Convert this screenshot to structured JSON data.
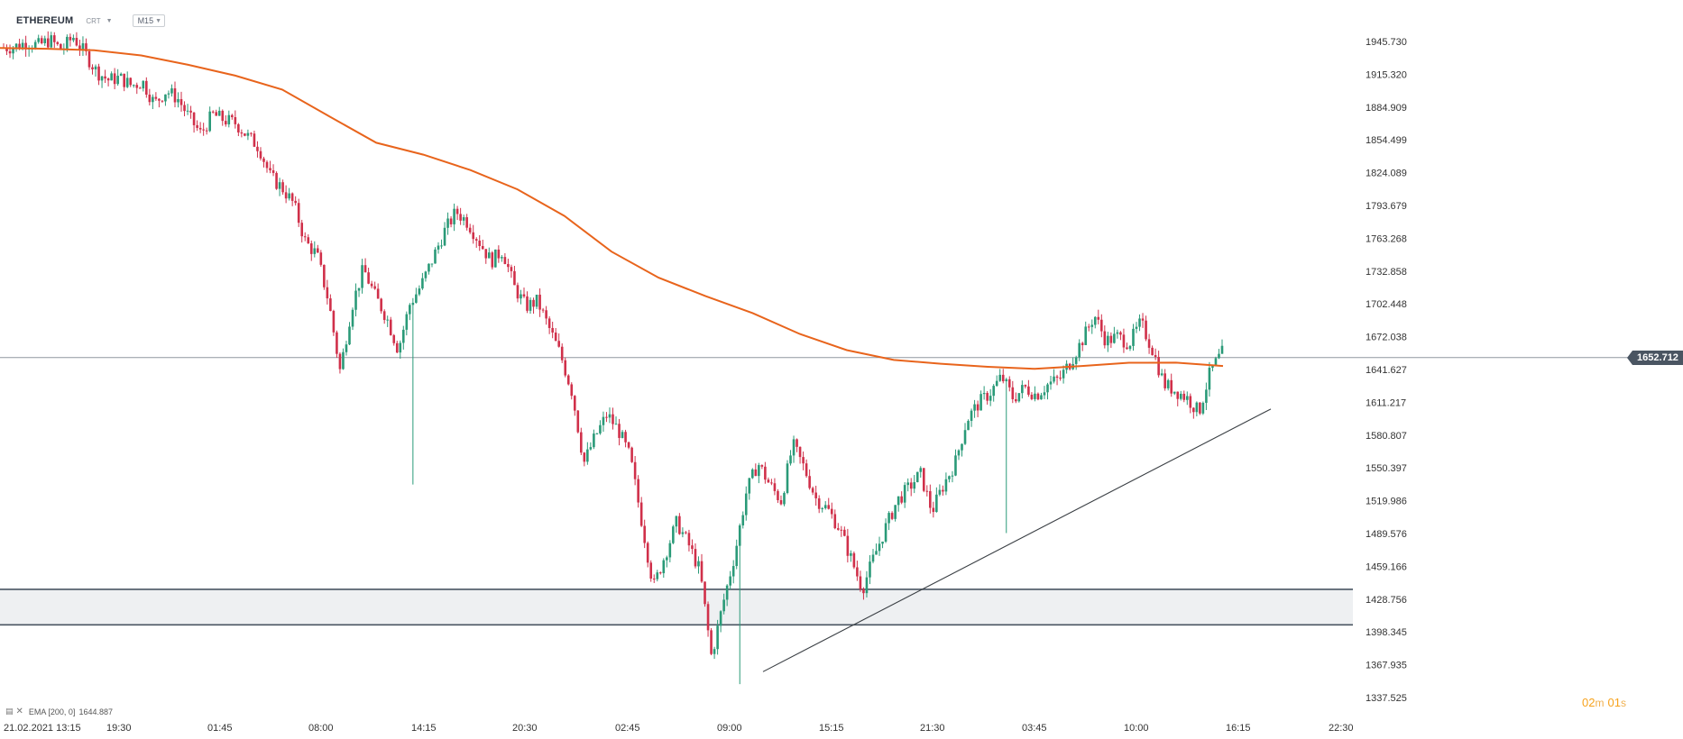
{
  "header": {
    "symbol": "ETHEREUM",
    "chart_type": "CRT",
    "interval": "M15"
  },
  "indicator_legend": {
    "name": "EMA [200, 0]",
    "value": "1644.887"
  },
  "timer": {
    "minutes": "02",
    "minutes_unit": "m",
    "seconds": "01",
    "seconds_unit": "s"
  },
  "current_price_label": "1652.712",
  "colors": {
    "up_candle": "#2a9a78",
    "down_candle": "#d0304a",
    "ema_line": "#e8641c",
    "support_zone_fill": "#eef0f2",
    "support_zone_border": "#4a5562",
    "trendline": "#3a3f44",
    "price_line": "#8f979f",
    "price_badge": "#4a5562",
    "timer": "#f7a21b"
  },
  "chart_data": {
    "type": "candlestick",
    "symbol": "ETHEREUM",
    "timeframe": "M15",
    "y_ticks": [
      "1945.730",
      "1915.320",
      "1884.909",
      "1854.499",
      "1824.089",
      "1793.679",
      "1763.268",
      "1732.858",
      "1702.448",
      "1672.038",
      "1641.627",
      "1611.217",
      "1580.807",
      "1550.397",
      "1519.986",
      "1489.576",
      "1459.166",
      "1428.756",
      "1398.345",
      "1367.935",
      "1337.525"
    ],
    "y_range": [
      1330,
      1960
    ],
    "x_ticks": [
      "21.02.2021  13:15",
      "19:30",
      "01:45",
      "08:00",
      "14:15",
      "20:30",
      "02:45",
      "09:00",
      "15:15",
      "21:30",
      "03:45",
      "10:00",
      "16:15",
      "22:30"
    ],
    "current_price": 1652.712,
    "support_zone": [
      1404.9,
      1437.8
    ],
    "trendline": [
      {
        "x": "09:00 (+1h)",
        "y": 1361.5
      },
      {
        "x": "19:00 (projected)",
        "y": 1605.0
      }
    ],
    "ema": {
      "name": "EMA [200, 0]",
      "last_value": 1644.887,
      "points": [
        1939.7,
        1939.0,
        1937.6,
        1932.8,
        1924.1,
        1914.1,
        1901.1,
        1876.3,
        1851.8,
        1840.8,
        1826.5,
        1808.6,
        1784.0,
        1750.9,
        1726.8,
        1709.6,
        1693.9,
        1674.6,
        1659.6,
        1650.5,
        1647.0,
        1644.1,
        1642.2,
        1644.9,
        1647.9,
        1648.0,
        1644.9
      ]
    },
    "close_path": [
      1940,
      1941,
      1945,
      1942,
      1947,
      1938,
      1950,
      1935,
      1918,
      1910,
      1912,
      1905,
      1908,
      1888,
      1900,
      1893,
      1875,
      1860,
      1878,
      1873,
      1870,
      1858,
      1848,
      1820,
      1810,
      1795,
      1760,
      1748,
      1705,
      1640,
      1700,
      1735,
      1710,
      1690,
      1660,
      1702,
      1720,
      1745,
      1770,
      1788,
      1778,
      1760,
      1742,
      1752,
      1718,
      1700,
      1705,
      1680,
      1655,
      1620,
      1555,
      1580,
      1600,
      1585,
      1560,
      1500,
      1440,
      1470,
      1500,
      1480,
      1455,
      1375,
      1425,
      1470,
      1528,
      1555,
      1535,
      1520,
      1572,
      1550,
      1522,
      1512,
      1495,
      1467,
      1438,
      1468,
      1495,
      1520,
      1532,
      1545,
      1510,
      1535,
      1555,
      1595,
      1610,
      1620,
      1635,
      1615,
      1625,
      1618,
      1628,
      1633,
      1650,
      1670,
      1692,
      1668,
      1672,
      1666,
      1685,
      1660,
      1628,
      1622,
      1615,
      1602,
      1640,
      1657
    ]
  }
}
